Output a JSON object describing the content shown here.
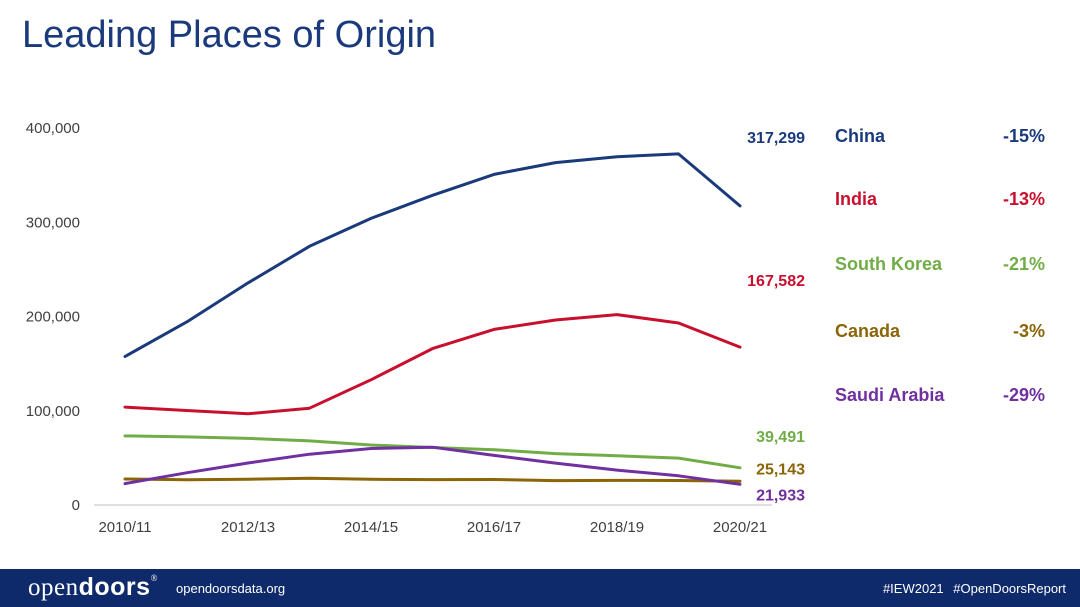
{
  "title": "Leading Places of Origin",
  "chart_data": {
    "type": "line",
    "x": [
      "2010/11",
      "2011/12",
      "2012/13",
      "2013/14",
      "2014/15",
      "2015/16",
      "2016/17",
      "2017/18",
      "2018/19",
      "2019/20",
      "2020/21"
    ],
    "x_tick_labels": [
      "2010/11",
      "2012/13",
      "2014/15",
      "2016/17",
      "2018/19",
      "2020/21"
    ],
    "y_tick_labels": [
      "0",
      "100,000",
      "200,000",
      "300,000",
      "400,000"
    ],
    "ylim": [
      0,
      400000
    ],
    "grid": false,
    "series": [
      {
        "name": "China",
        "color": "#1a3a7c",
        "end_label": "317,299",
        "change": "-15%",
        "values": [
          157558,
          194029,
          235597,
          274439,
          304040,
          328547,
          350755,
          363341,
          369548,
          372532,
          317299
        ]
      },
      {
        "name": "India",
        "color": "#c8102e",
        "end_label": "167,582",
        "change": "-13%",
        "values": [
          103895,
          100270,
          96754,
          102673,
          132888,
          165918,
          186267,
          196271,
          202014,
          193124,
          167582
        ]
      },
      {
        "name": "South Korea",
        "color": "#70ad47",
        "end_label": "39,491",
        "change": "-21%",
        "values": [
          73351,
          72295,
          70627,
          68047,
          63710,
          61007,
          58663,
          54555,
          52250,
          49809,
          39491
        ]
      },
      {
        "name": "Canada",
        "color": "#8b6508",
        "end_label": "25,143",
        "change": "-3%",
        "values": [
          27546,
          26821,
          27357,
          28304,
          27240,
          26973,
          27065,
          25909,
          26122,
          25992,
          25143
        ]
      },
      {
        "name": "Saudi Arabia",
        "color": "#7030a0",
        "end_label": "21,933",
        "change": "-29%",
        "values": [
          22704,
          34139,
          44566,
          53919,
          59945,
          61287,
          52611,
          44432,
          37080,
          30957,
          21933
        ]
      }
    ]
  },
  "footer": {
    "logo_light": "open",
    "logo_bold": "doors",
    "logo_mark": "®",
    "website": "opendoorsdata.org",
    "hashtags": "#IEW2021 #OpenDoorsReport",
    "bg_color": "#0f2a6b"
  }
}
